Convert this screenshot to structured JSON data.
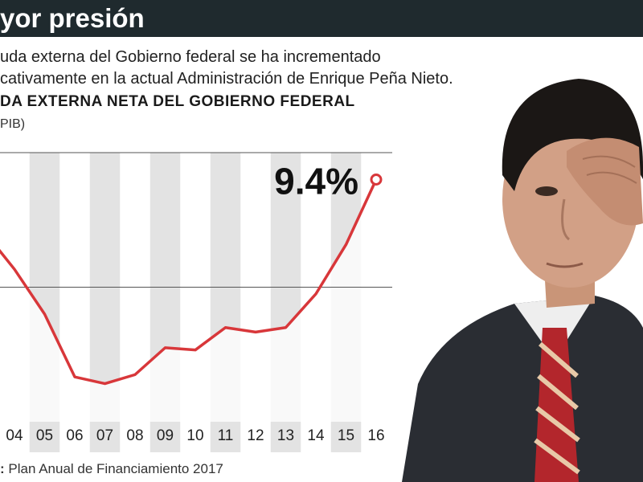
{
  "header": {
    "title": "yor presión",
    "subtitle_line1": "uda externa del Gobierno federal se ha incrementado",
    "subtitle_line2": "cativamente en la actual Administración de Enrique Peña Nieto."
  },
  "source": {
    "label": ":",
    "text": "Plan Anual de Financiamiento 2017"
  },
  "chart_data": {
    "type": "line",
    "title": "DA EXTERNA NETA DEL GOBIERNO FEDERAL",
    "unit": "PIB)",
    "categories": [
      "04",
      "05",
      "06",
      "07",
      "08",
      "09",
      "10",
      "11",
      "12",
      "13",
      "14",
      "15",
      "16"
    ],
    "series": [
      {
        "values": [
          7.4,
          6.4,
          5.0,
          4.85,
          5.05,
          5.65,
          5.6,
          6.1,
          6.0,
          6.1,
          6.85,
          7.95,
          9.4
        ]
      }
    ],
    "annotation": "9.4%",
    "ylim": [
      4.0,
      10.0
    ],
    "grid": true,
    "colors": {
      "line": "#d8373a",
      "band": "#e3e3e3",
      "gridline": "#555555"
    }
  }
}
